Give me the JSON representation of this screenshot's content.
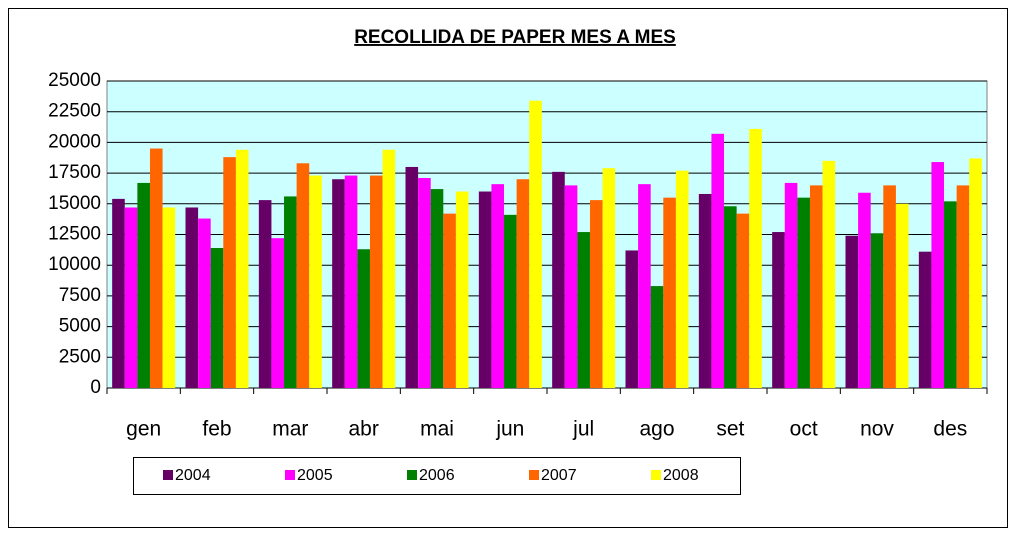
{
  "chart_data": {
    "type": "bar",
    "title": "RECOLLIDA DE PAPER MES A MES",
    "categories": [
      "gen",
      "feb",
      "mar",
      "abr",
      "mai",
      "jun",
      "jul",
      "ago",
      "set",
      "oct",
      "nov",
      "des"
    ],
    "series": [
      {
        "name": "2004",
        "color": "#660066",
        "values": [
          15400,
          14700,
          15300,
          17000,
          18000,
          16000,
          17600,
          11200,
          15800,
          12700,
          12400,
          11100
        ]
      },
      {
        "name": "2005",
        "color": "#ff00ff",
        "values": [
          14700,
          13800,
          12200,
          17300,
          17100,
          16600,
          16500,
          16600,
          20700,
          16700,
          15900,
          18400
        ]
      },
      {
        "name": "2006",
        "color": "#008000",
        "values": [
          16700,
          11400,
          15600,
          11300,
          16200,
          14100,
          12700,
          8300,
          14800,
          15500,
          12600,
          15200
        ]
      },
      {
        "name": "2007",
        "color": "#ff6600",
        "values": [
          19500,
          18800,
          18300,
          17300,
          14200,
          17000,
          15300,
          15500,
          14200,
          16500,
          16500,
          16500
        ]
      },
      {
        "name": "2008",
        "color": "#ffff00",
        "values": [
          14700,
          19400,
          17300,
          19400,
          16000,
          23400,
          17900,
          17700,
          21100,
          18500,
          15000,
          18700
        ]
      }
    ],
    "ylim": [
      0,
      25000
    ],
    "yticks": [
      0,
      2500,
      5000,
      7500,
      10000,
      12500,
      15000,
      17500,
      20000,
      22500,
      25000
    ],
    "grid": true
  }
}
